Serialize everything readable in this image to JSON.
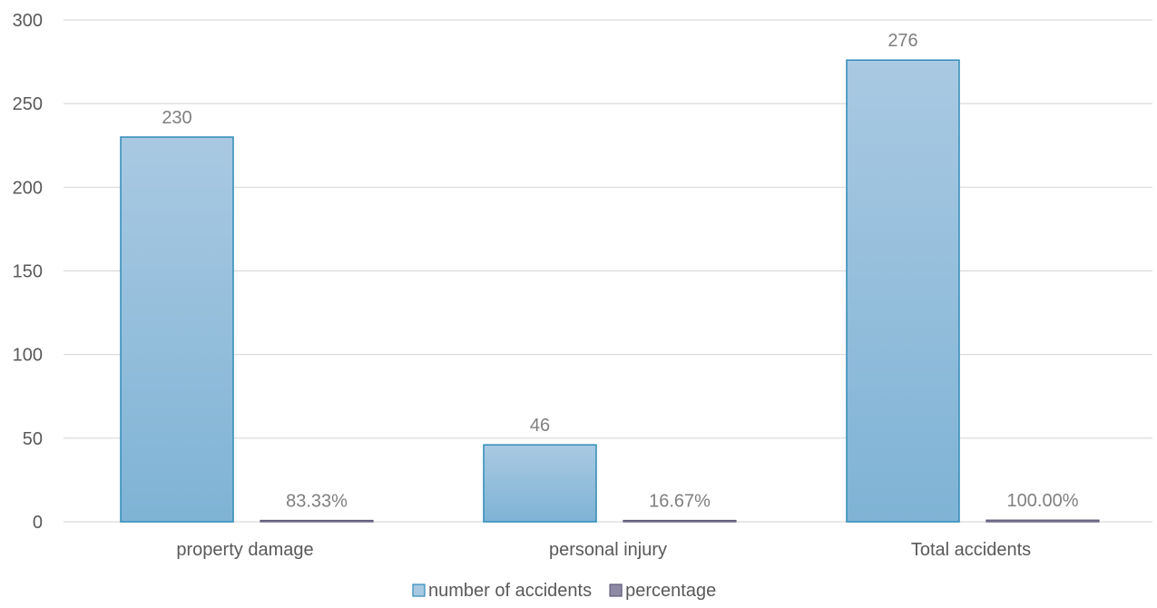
{
  "chart_data": {
    "type": "bar",
    "title": "",
    "xlabel": "",
    "ylabel": "",
    "categories": [
      "property damage",
      "personal injury",
      "Total accidents"
    ],
    "ylim": [
      0,
      300
    ],
    "yticks": [
      0,
      50,
      100,
      150,
      200,
      250,
      300
    ],
    "grid": true,
    "legend_position": "bottom",
    "series": [
      {
        "name": "number of accidents",
        "values": [
          230,
          46,
          276
        ],
        "labels": [
          "230",
          "46",
          "276"
        ],
        "color": "#7fb3d5",
        "color_top": "#a9c9e2",
        "border": "#2e8bb8"
      },
      {
        "name": "percentage",
        "values": [
          0.8333,
          0.1667,
          1.0
        ],
        "labels": [
          "83.33%",
          "16.67%",
          "100.00%"
        ],
        "color": "#8e8aa6",
        "border": "#5d5a78"
      }
    ]
  }
}
